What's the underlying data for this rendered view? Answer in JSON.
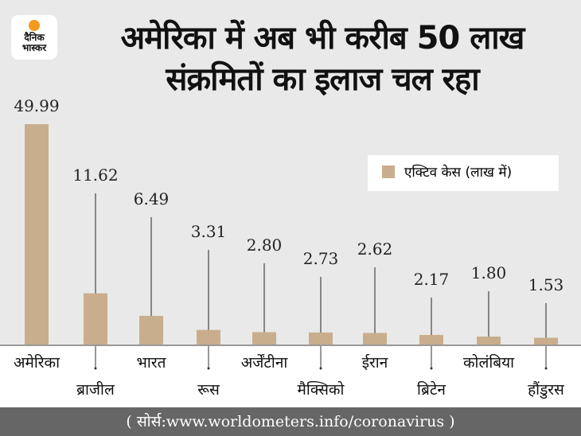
{
  "logo": {
    "line1": "दैनिक",
    "line2": "भास्कर"
  },
  "title_line1": "अमेरिका में अब भी करीब 50 लाख",
  "title_line2": "संक्रमितों का इलाज चल रहा",
  "footer": "( सोर्स:www.worldometers.info/coronavirus )",
  "chart_data": {
    "type": "bar",
    "title": "अमेरिका में अब भी करीब 50 लाख संक्रमितों का इलाज चल रहा",
    "categories": [
      "अमेरिका",
      "ब्राजील",
      "भारत",
      "रूस",
      "अर्जेंटीना",
      "मैक्सिको",
      "ईरान",
      "ब्रिटेन",
      "कोलंबिया",
      "हौंडुरस"
    ],
    "series": [
      {
        "name": "एक्टिव केस (लाख में)",
        "values": [
          49.99,
          11.62,
          6.49,
          3.31,
          2.8,
          2.73,
          2.62,
          2.17,
          1.8,
          1.53
        ]
      }
    ],
    "value_labels": [
      "49.99",
      "11.62",
      "6.49",
      "3.31",
      "2.80",
      "2.73",
      "2.62",
      "2.17",
      "1.80",
      "1.53"
    ],
    "legend": "top-right",
    "ylim": [
      0,
      50
    ],
    "grid": false,
    "bar_color": "#c8ae8c"
  }
}
